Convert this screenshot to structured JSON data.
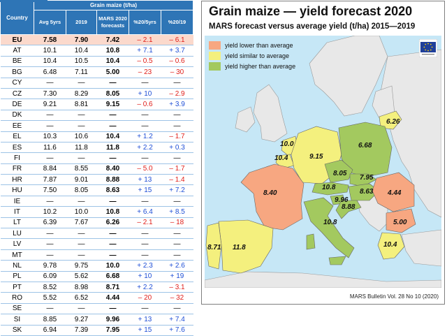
{
  "table": {
    "header_group": "Grain maize (t/ha)",
    "columns": [
      "Country",
      "Avg 5yrs",
      "2019",
      "MARS 2020 forecasts",
      "%20/5yrs",
      "%20/19"
    ],
    "rows": [
      {
        "country": "EU",
        "avg": "7.58",
        "y2019": "7.90",
        "f2020": "7.42",
        "p5": "– 2.1",
        "p19": "– 6.1"
      },
      {
        "country": "AT",
        "avg": "10.1",
        "y2019": "10.4",
        "f2020": "10.8",
        "p5": "+ 7.1",
        "p19": "+ 3.7"
      },
      {
        "country": "BE",
        "avg": "10.4",
        "y2019": "10.5",
        "f2020": "10.4",
        "p5": "– 0.5",
        "p19": "– 0.6"
      },
      {
        "country": "BG",
        "avg": "6.48",
        "y2019": "7.11",
        "f2020": "5.00",
        "p5": "– 23",
        "p19": "– 30"
      },
      {
        "country": "CY",
        "avg": "—",
        "y2019": "—",
        "f2020": "—",
        "p5": "—",
        "p19": "—"
      },
      {
        "country": "CZ",
        "avg": "7.30",
        "y2019": "8.29",
        "f2020": "8.05",
        "p5": "+ 10",
        "p19": "– 2.9"
      },
      {
        "country": "DE",
        "avg": "9.21",
        "y2019": "8.81",
        "f2020": "9.15",
        "p5": "– 0.6",
        "p19": "+ 3.9"
      },
      {
        "country": "DK",
        "avg": "—",
        "y2019": "—",
        "f2020": "—",
        "p5": "—",
        "p19": "—"
      },
      {
        "country": "EE",
        "avg": "—",
        "y2019": "—",
        "f2020": "—",
        "p5": "—",
        "p19": "—"
      },
      {
        "country": "EL",
        "avg": "10.3",
        "y2019": "10.6",
        "f2020": "10.4",
        "p5": "+ 1.2",
        "p19": "– 1.7"
      },
      {
        "country": "ES",
        "avg": "11.6",
        "y2019": "11.8",
        "f2020": "11.8",
        "p5": "+ 2.2",
        "p19": "+ 0.3"
      },
      {
        "country": "FI",
        "avg": "—",
        "y2019": "—",
        "f2020": "—",
        "p5": "—",
        "p19": "—"
      },
      {
        "country": "FR",
        "avg": "8.84",
        "y2019": "8.55",
        "f2020": "8.40",
        "p5": "– 5.0",
        "p19": "– 1.7"
      },
      {
        "country": "HR",
        "avg": "7.87",
        "y2019": "9.01",
        "f2020": "8.88",
        "p5": "+ 13",
        "p19": "– 1.4"
      },
      {
        "country": "HU",
        "avg": "7.50",
        "y2019": "8.05",
        "f2020": "8.63",
        "p5": "+ 15",
        "p19": "+ 7.2"
      },
      {
        "country": "IE",
        "avg": "—",
        "y2019": "—",
        "f2020": "—",
        "p5": "—",
        "p19": "—"
      },
      {
        "country": "IT",
        "avg": "10.2",
        "y2019": "10.0",
        "f2020": "10.8",
        "p5": "+ 6.4",
        "p19": "+ 8.5"
      },
      {
        "country": "LT",
        "avg": "6.39",
        "y2019": "7.67",
        "f2020": "6.26",
        "p5": "– 2.1",
        "p19": "– 18"
      },
      {
        "country": "LU",
        "avg": "—",
        "y2019": "—",
        "f2020": "—",
        "p5": "—",
        "p19": "—"
      },
      {
        "country": "LV",
        "avg": "—",
        "y2019": "—",
        "f2020": "—",
        "p5": "—",
        "p19": "—"
      },
      {
        "country": "MT",
        "avg": "—",
        "y2019": "—",
        "f2020": "—",
        "p5": "—",
        "p19": "—"
      },
      {
        "country": "NL",
        "avg": "9.78",
        "y2019": "9.75",
        "f2020": "10.0",
        "p5": "+ 2.3",
        "p19": "+ 2.6"
      },
      {
        "country": "PL",
        "avg": "6.09",
        "y2019": "5.62",
        "f2020": "6.68",
        "p5": "+ 10",
        "p19": "+ 19"
      },
      {
        "country": "PT",
        "avg": "8.52",
        "y2019": "8.98",
        "f2020": "8.71",
        "p5": "+ 2.2",
        "p19": "– 3.1"
      },
      {
        "country": "RO",
        "avg": "5.52",
        "y2019": "6.52",
        "f2020": "4.44",
        "p5": "– 20",
        "p19": "– 32"
      },
      {
        "country": "SE",
        "avg": "—",
        "y2019": "—",
        "f2020": "—",
        "p5": "—",
        "p19": "—"
      },
      {
        "country": "SI",
        "avg": "8.85",
        "y2019": "9.27",
        "f2020": "9.96",
        "p5": "+ 13",
        "p19": "+ 7.4"
      },
      {
        "country": "SK",
        "avg": "6.94",
        "y2019": "7.39",
        "f2020": "7.95",
        "p5": "+ 15",
        "p19": "+ 7.6"
      }
    ]
  },
  "map": {
    "title": "Grain maize — yield forecast 2020",
    "subtitle": "MARS forecast versus average yield (t/ha) 2015—2019",
    "legend": [
      {
        "label": "yield lower than average",
        "color": "#f7a781"
      },
      {
        "label": "yield similar to average",
        "color": "#f4f07e"
      },
      {
        "label": "yield higher than average",
        "color": "#a3c95f"
      }
    ],
    "source": "MARS Bulletin Vol. 28 No 10 (2020)",
    "colors": {
      "sea": "#c6e7f6",
      "land": "#e8e8e8",
      "lower": "#f7a781",
      "similar": "#f4f07e",
      "higher": "#a3c95f"
    },
    "labels": [
      {
        "name": "LT",
        "text": "6.26"
      },
      {
        "name": "NL",
        "text": "10.0"
      },
      {
        "name": "BE",
        "text": "10.4"
      },
      {
        "name": "DE",
        "text": "9.15"
      },
      {
        "name": "PL",
        "text": "6.68"
      },
      {
        "name": "CZ",
        "text": "8.05"
      },
      {
        "name": "SK",
        "text": "7.95"
      },
      {
        "name": "AT",
        "text": "10.8"
      },
      {
        "name": "HU",
        "text": "8.63"
      },
      {
        "name": "SI",
        "text": "9.96"
      },
      {
        "name": "HR",
        "text": "8.88"
      },
      {
        "name": "FR",
        "text": "8.40"
      },
      {
        "name": "RO",
        "text": "4.44"
      },
      {
        "name": "BG",
        "text": "5.00"
      },
      {
        "name": "IT",
        "text": "10.8"
      },
      {
        "name": "PT",
        "text": "8.71"
      },
      {
        "name": "ES",
        "text": "11.8"
      },
      {
        "name": "EL",
        "text": "10.4"
      }
    ]
  }
}
